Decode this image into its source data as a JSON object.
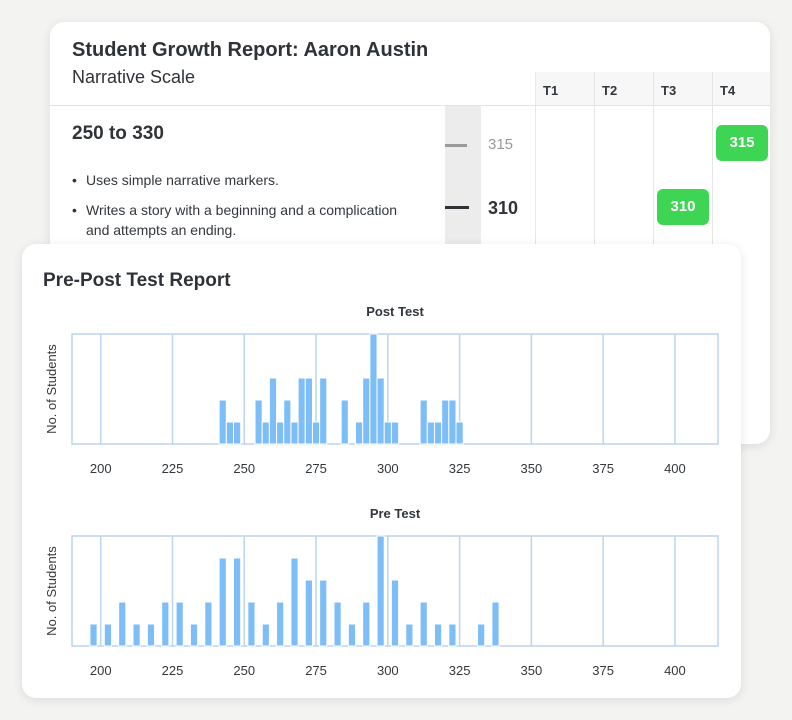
{
  "growth_report": {
    "title": "Student Growth Report: Aaron Austin",
    "subtitle": "Narrative Scale",
    "range_label": "250 to 330",
    "descriptors": [
      "Uses simple narrative markers.",
      "Writes a story with a beginning and a complication and attempts an ending."
    ],
    "scale_marks": [
      "315",
      "310"
    ],
    "terms": [
      "T1",
      "T2",
      "T3",
      "T4"
    ],
    "scores": [
      {
        "term": "T4",
        "value": "315"
      },
      {
        "term": "T3",
        "value": "310"
      }
    ],
    "badge_color": "#3fd554"
  },
  "prepost_report": {
    "title": "Pre-Post Test Report"
  },
  "chart_data": [
    {
      "type": "bar",
      "title": "Post Test",
      "ylabel": "No. of Students",
      "xlabel": "",
      "bin_width": 2.5,
      "xlim": [
        190,
        415
      ],
      "xticks": [
        200,
        225,
        250,
        275,
        300,
        325,
        350,
        375,
        400
      ],
      "bars": [
        {
          "x": 242.5,
          "v": 2
        },
        {
          "x": 245,
          "v": 1
        },
        {
          "x": 247.5,
          "v": 1
        },
        {
          "x": 255,
          "v": 2
        },
        {
          "x": 257.5,
          "v": 1
        },
        {
          "x": 260,
          "v": 3
        },
        {
          "x": 262.5,
          "v": 1
        },
        {
          "x": 265,
          "v": 2
        },
        {
          "x": 267.5,
          "v": 1
        },
        {
          "x": 270,
          "v": 3
        },
        {
          "x": 272.5,
          "v": 3
        },
        {
          "x": 275,
          "v": 1
        },
        {
          "x": 277.5,
          "v": 3
        },
        {
          "x": 285,
          "v": 2
        },
        {
          "x": 290,
          "v": 1
        },
        {
          "x": 292.5,
          "v": 3
        },
        {
          "x": 295,
          "v": 5
        },
        {
          "x": 297.5,
          "v": 3
        },
        {
          "x": 300,
          "v": 1
        },
        {
          "x": 302.5,
          "v": 1
        },
        {
          "x": 312.5,
          "v": 2
        },
        {
          "x": 315,
          "v": 1
        },
        {
          "x": 317.5,
          "v": 1
        },
        {
          "x": 320,
          "v": 2
        },
        {
          "x": 322.5,
          "v": 2
        },
        {
          "x": 325,
          "v": 1
        }
      ]
    },
    {
      "type": "bar",
      "title": "Pre Test",
      "ylabel": "No. of Students",
      "xlabel": "",
      "bin_width": 2.5,
      "xlim": [
        190,
        415
      ],
      "xticks": [
        200,
        225,
        250,
        275,
        300,
        325,
        350,
        375,
        400
      ],
      "bars": [
        {
          "x": 197.5,
          "v": 1
        },
        {
          "x": 202.5,
          "v": 1
        },
        {
          "x": 207.5,
          "v": 2
        },
        {
          "x": 212.5,
          "v": 1
        },
        {
          "x": 217.5,
          "v": 1
        },
        {
          "x": 222.5,
          "v": 2
        },
        {
          "x": 227.5,
          "v": 2
        },
        {
          "x": 232.5,
          "v": 1
        },
        {
          "x": 237.5,
          "v": 2
        },
        {
          "x": 242.5,
          "v": 4
        },
        {
          "x": 247.5,
          "v": 4
        },
        {
          "x": 252.5,
          "v": 2
        },
        {
          "x": 257.5,
          "v": 1
        },
        {
          "x": 262.5,
          "v": 2
        },
        {
          "x": 267.5,
          "v": 4
        },
        {
          "x": 272.5,
          "v": 3
        },
        {
          "x": 277.5,
          "v": 3
        },
        {
          "x": 282.5,
          "v": 2
        },
        {
          "x": 287.5,
          "v": 1
        },
        {
          "x": 292.5,
          "v": 2
        },
        {
          "x": 297.5,
          "v": 5
        },
        {
          "x": 302.5,
          "v": 3
        },
        {
          "x": 307.5,
          "v": 1
        },
        {
          "x": 312.5,
          "v": 2
        },
        {
          "x": 317.5,
          "v": 1
        },
        {
          "x": 322.5,
          "v": 1
        },
        {
          "x": 332.5,
          "v": 1
        },
        {
          "x": 337.5,
          "v": 2
        }
      ]
    }
  ],
  "colors": {
    "bar": "#7dbdf8",
    "grid": "#bdd4ee",
    "frame": "#bdd4ee"
  }
}
